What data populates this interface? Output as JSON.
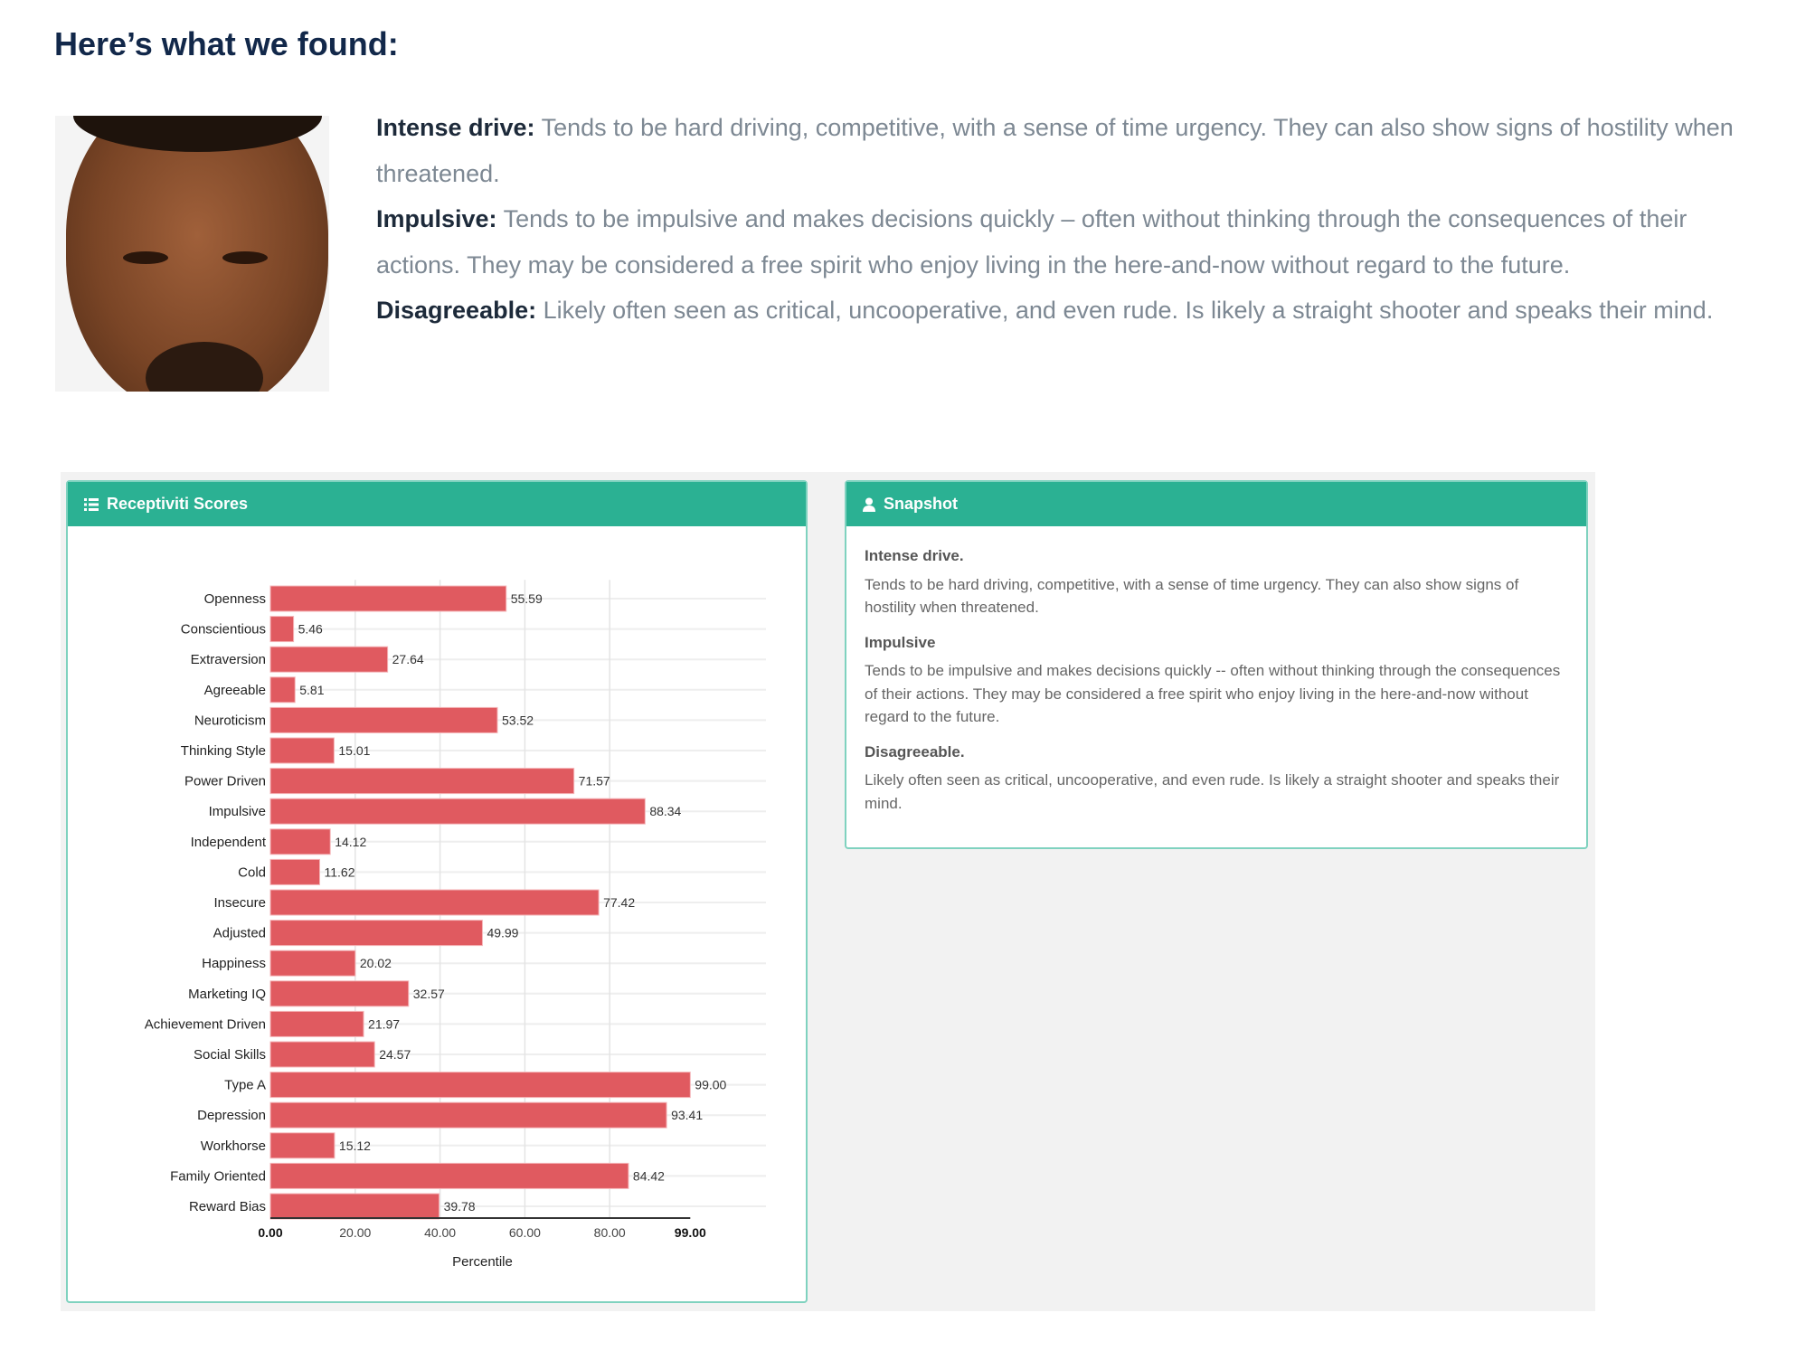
{
  "heading": "Here’s what we found:",
  "findings": [
    {
      "title": "Intense drive:",
      "text": "Tends to be hard driving, competitive, with a sense of time urgency. They can also show signs of hostility when threatened."
    },
    {
      "title": "Impulsive:",
      "text": " Tends to be impulsive and makes decisions quickly – often without thinking through the consequences of their actions. They may be considered a free spirit who enjoy living in the here-and-now without regard to the future."
    },
    {
      "title": "Disagreeable:",
      "text": "Likely often seen as critical, uncooperative, and even rude. Is likely a straight shooter and speaks their mind."
    }
  ],
  "scores_panel": {
    "title": "Receptiviti Scores",
    "icon": "list-icon"
  },
  "snapshot_panel": {
    "title": "Snapshot",
    "icon": "user-icon",
    "items": [
      {
        "title": "Intense drive.",
        "text": "Tends to be hard driving, competitive, with a sense of time urgency. They can also show signs of hostility when threatened."
      },
      {
        "title": "Impulsive",
        "text": "Tends to be impulsive and makes decisions quickly -- often without thinking through the consequences of their actions. They may be considered a free spirit who enjoy living in the here-and-now without regard to the future."
      },
      {
        "title": "Disagreeable.",
        "text": "Likely often seen as critical, uncooperative, and even rude. Is likely a straight shooter and speaks their mind."
      }
    ]
  },
  "colors": {
    "header": "#2bb193",
    "bar": "#e05a60",
    "heading": "#12284a"
  },
  "chart_data": {
    "type": "bar",
    "orientation": "horizontal",
    "categories": [
      "Openness",
      "Conscientious",
      "Extraversion",
      "Agreeable",
      "Neuroticism",
      "Thinking Style",
      "Power Driven",
      "Impulsive",
      "Independent",
      "Cold",
      "Insecure",
      "Adjusted",
      "Happiness",
      "Marketing IQ",
      "Achievement Driven",
      "Social Skills",
      "Type A",
      "Depression",
      "Workhorse",
      "Family Oriented",
      "Reward Bias"
    ],
    "values": [
      55.59,
      5.46,
      27.64,
      5.81,
      53.52,
      15.01,
      71.57,
      88.34,
      14.12,
      11.62,
      77.42,
      49.99,
      20.02,
      32.57,
      21.97,
      24.57,
      99.0,
      93.41,
      15.12,
      84.42,
      39.78
    ],
    "value_labels": [
      "55.59",
      "5.46",
      "27.64",
      "5.81",
      "53.52",
      "15.01",
      "71.57",
      "88.34",
      "14.12",
      "11.62",
      "77.42",
      "49.99",
      "20.02",
      "32.57",
      "21.97",
      "24.57",
      "99.00",
      "93.41",
      "15.12",
      "84.42",
      "39.78"
    ],
    "xticks": [
      0,
      20,
      40,
      60,
      80,
      99
    ],
    "xtick_labels": [
      "0.00",
      "20.00",
      "40.00",
      "60.00",
      "80.00",
      "99.00"
    ],
    "xlabel": "Percentile",
    "xlim": [
      0,
      118
    ],
    "grid": true
  }
}
